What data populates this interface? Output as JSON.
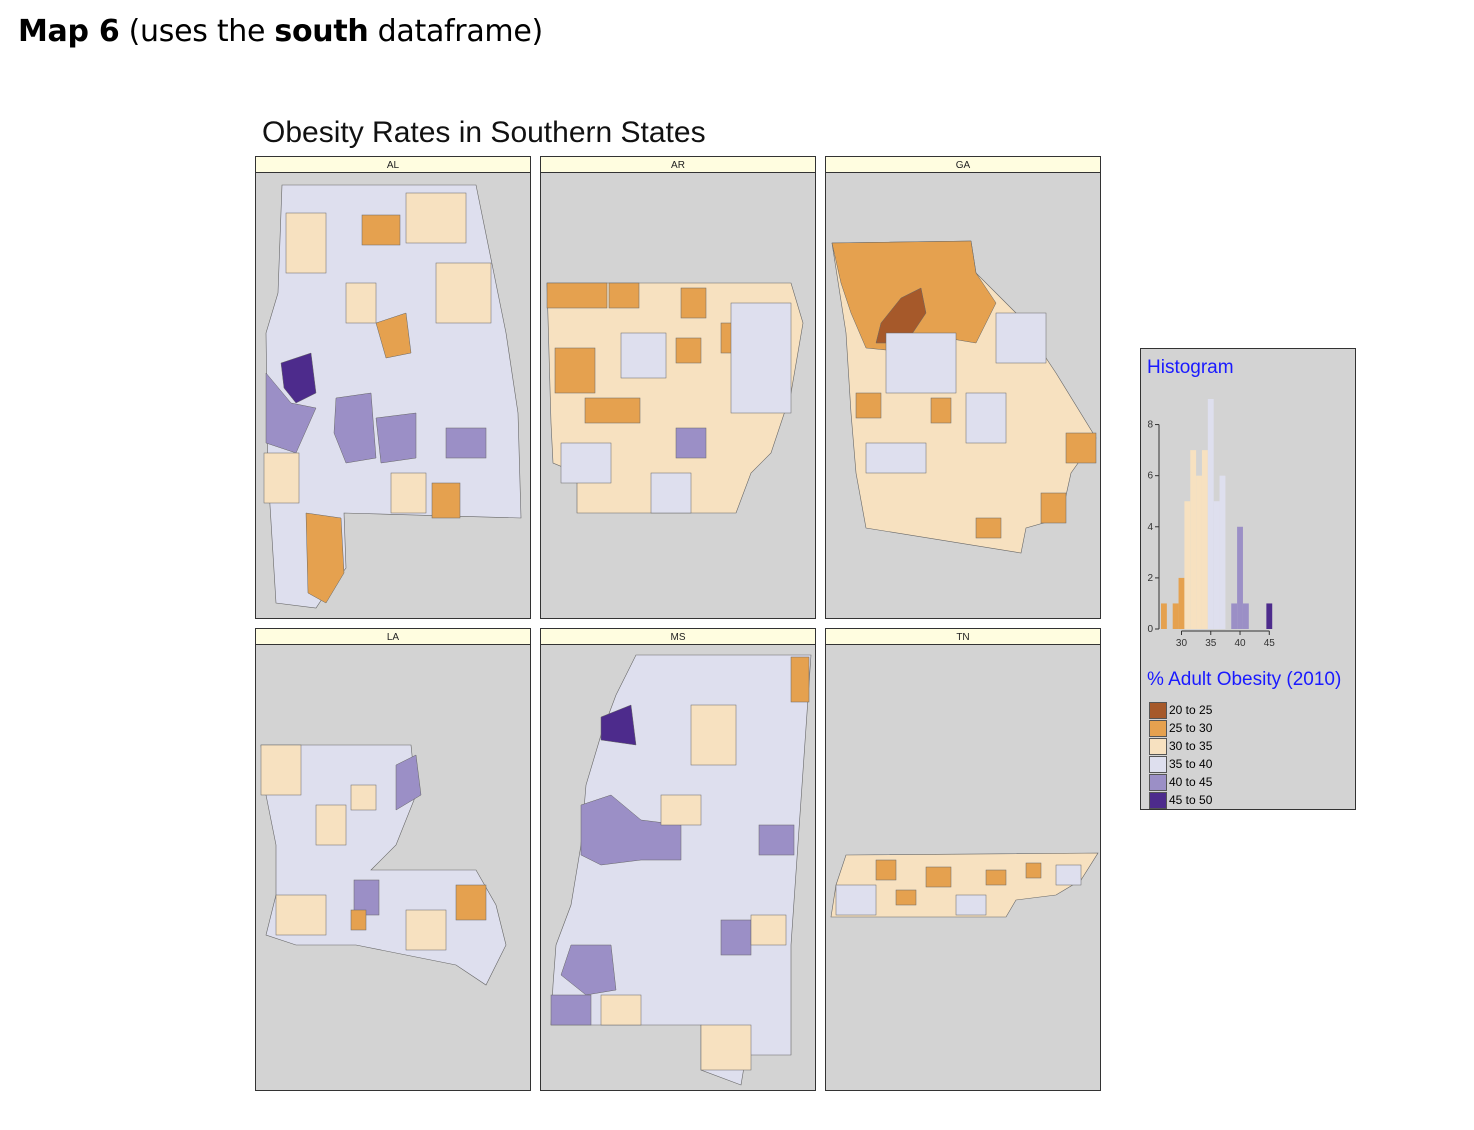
{
  "heading": {
    "prefix": "Map 6",
    "middle1": " (uses the ",
    "bold": "south",
    "middle2": " dataframe)"
  },
  "map_title": "Obesity Rates in Southern States",
  "panels": [
    {
      "label": "AL"
    },
    {
      "label": "AR"
    },
    {
      "label": "GA"
    },
    {
      "label": "LA"
    },
    {
      "label": "MS"
    },
    {
      "label": "TN"
    }
  ],
  "histogram": {
    "title": "Histogram",
    "x_ticks": [
      "30",
      "35",
      "40",
      "45"
    ],
    "y_ticks": [
      "0",
      "2",
      "4",
      "6",
      "8"
    ]
  },
  "legend": {
    "title": "% Adult Obesity (2010)",
    "items": [
      {
        "label": "20 to 25",
        "color": "#a6592a"
      },
      {
        "label": "25 to 30",
        "color": "#e5a14f"
      },
      {
        "label": "30 to 35",
        "color": "#f7e1c0"
      },
      {
        "label": "35 to 40",
        "color": "#dedfee"
      },
      {
        "label": "40 to 45",
        "color": "#9b8fc6"
      },
      {
        "label": "45 to 50",
        "color": "#4d2b8c"
      }
    ]
  },
  "chart_data": {
    "type": "bar",
    "title": "Histogram",
    "xlabel": "",
    "ylabel": "",
    "x": [
      27,
      28,
      29,
      30,
      31,
      32,
      33,
      34,
      35,
      36,
      37,
      38,
      39,
      40,
      41,
      42,
      43,
      44,
      45,
      46
    ],
    "values": [
      1,
      0,
      1,
      2,
      5,
      7,
      6,
      7,
      9,
      5,
      6,
      0,
      1,
      4,
      1,
      0,
      0,
      0,
      1,
      0
    ],
    "xlim": [
      26.5,
      47
    ],
    "ylim": [
      0,
      9
    ],
    "colors": [
      "#e5a14f",
      "#e5a14f",
      "#e5a14f",
      "#e5a14f",
      "#f7e1c0",
      "#f7e1c0",
      "#f7e1c0",
      "#f7e1c0",
      "#dedfee",
      "#dedfee",
      "#dedfee",
      "#dedfee",
      "#9b8fc6",
      "#9b8fc6",
      "#9b8fc6",
      "#9b8fc6",
      "#9b8fc6",
      "#4d2b8c",
      "#4d2b8c",
      "#4d2b8c"
    ]
  }
}
